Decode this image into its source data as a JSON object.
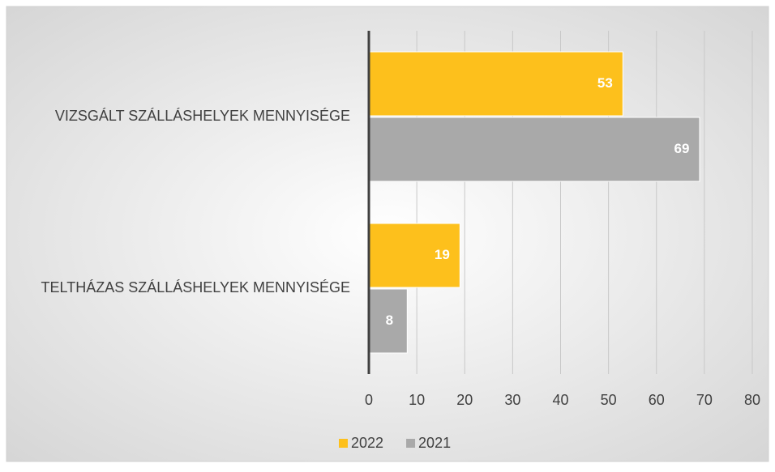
{
  "chart_data": {
    "type": "bar",
    "orientation": "horizontal",
    "categories": [
      "VIZSGÁLT SZÁLLÁSHELYEK MENNYISÉGE",
      "TELTHÁZAS SZÁLLÁSHELYEK MENNYISÉGE"
    ],
    "series": [
      {
        "name": "2022",
        "color": "#fdc01c",
        "values": [
          53,
          19
        ]
      },
      {
        "name": "2021",
        "color": "#a9a9a9",
        "values": [
          69,
          8
        ]
      }
    ],
    "xlim": [
      0,
      80
    ],
    "xticks": [
      0,
      10,
      20,
      30,
      40,
      50,
      60,
      70,
      80
    ],
    "grid": true,
    "legend": "bottom"
  }
}
